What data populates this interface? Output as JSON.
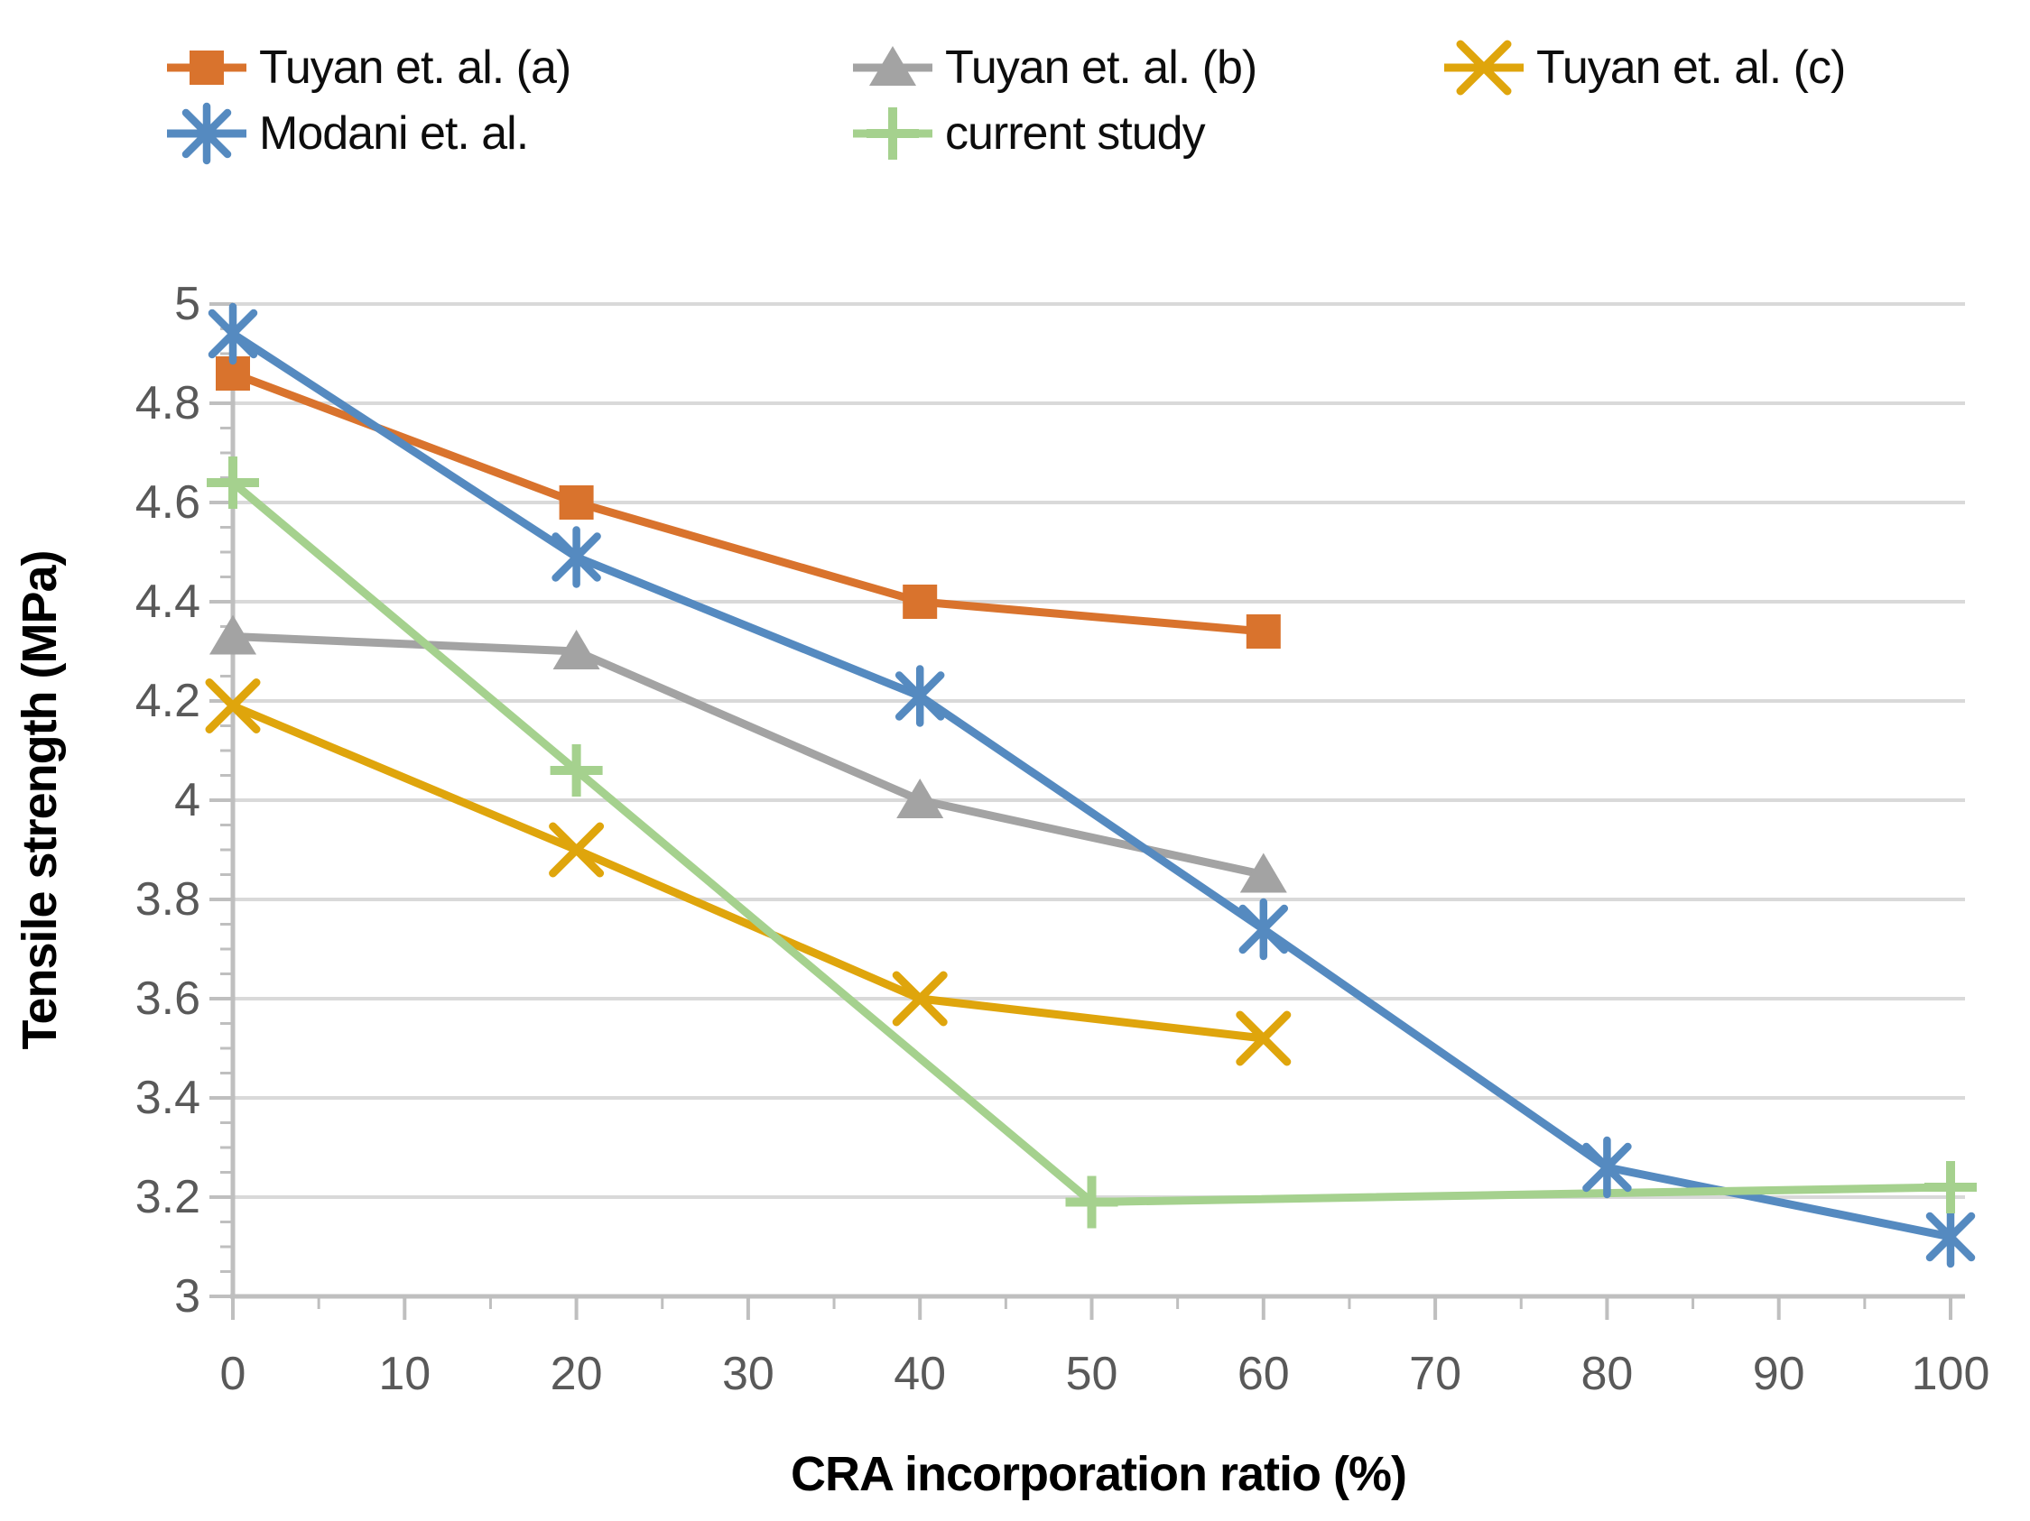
{
  "chart_data": {
    "type": "line",
    "title": "",
    "xlabel": "CRA incorporation ratio (%)",
    "ylabel": "Tensile strength (MPa)",
    "xlim": [
      0,
      100
    ],
    "ylim": [
      3,
      5
    ],
    "grid": "horizontal",
    "legend_position": "top",
    "x_tick_labels": [
      "0",
      "10",
      "20",
      "30",
      "40",
      "50",
      "60",
      "70",
      "80",
      "90",
      "100"
    ],
    "x_major_step": 10,
    "x_minor_step": 5,
    "y_tick_labels": [
      "5",
      "4.8",
      "4.6",
      "4.4",
      "4.2",
      "4",
      "3.8",
      "3.6",
      "3.4",
      "3.2",
      "3"
    ],
    "y_major_step": 0.2,
    "y_minor_step": 0.05,
    "series": [
      {
        "name": "Tuyan et. al. (a)",
        "marker": "square",
        "color": "#D9732D",
        "x": [
          0,
          20,
          40,
          60
        ],
        "values": [
          4.86,
          4.6,
          4.4,
          4.34
        ]
      },
      {
        "name": "Tuyan et. al. (b)",
        "marker": "triangle",
        "color": "#A3A3A3",
        "x": [
          0,
          20,
          40,
          60
        ],
        "values": [
          4.33,
          4.3,
          4.0,
          3.85
        ]
      },
      {
        "name": "Tuyan et. al. (c)",
        "marker": "x",
        "color": "#DFA50C",
        "x": [
          0,
          20,
          40,
          60
        ],
        "values": [
          4.19,
          3.9,
          3.6,
          3.52
        ]
      },
      {
        "name": "Modani et. al.",
        "marker": "asterisk",
        "color": "#558AC0",
        "x": [
          0,
          20,
          40,
          60,
          80,
          100
        ],
        "values": [
          4.94,
          4.49,
          4.21,
          3.74,
          3.26,
          3.12
        ]
      },
      {
        "name": "current study",
        "marker": "plus",
        "color": "#A5D18E",
        "x": [
          0,
          20,
          50,
          100
        ],
        "values": [
          4.64,
          4.06,
          3.19,
          3.22
        ]
      }
    ]
  },
  "legend_rows": [
    [
      0,
      1,
      2
    ],
    [
      3,
      4
    ]
  ],
  "colors": {
    "background": "#FFFFFF",
    "gridline": "#D9D9D9",
    "axis_line": "#BFBFBF",
    "tick_label": "#595959",
    "axis_title": "#000000",
    "legend_text": "#0D0D0D"
  }
}
